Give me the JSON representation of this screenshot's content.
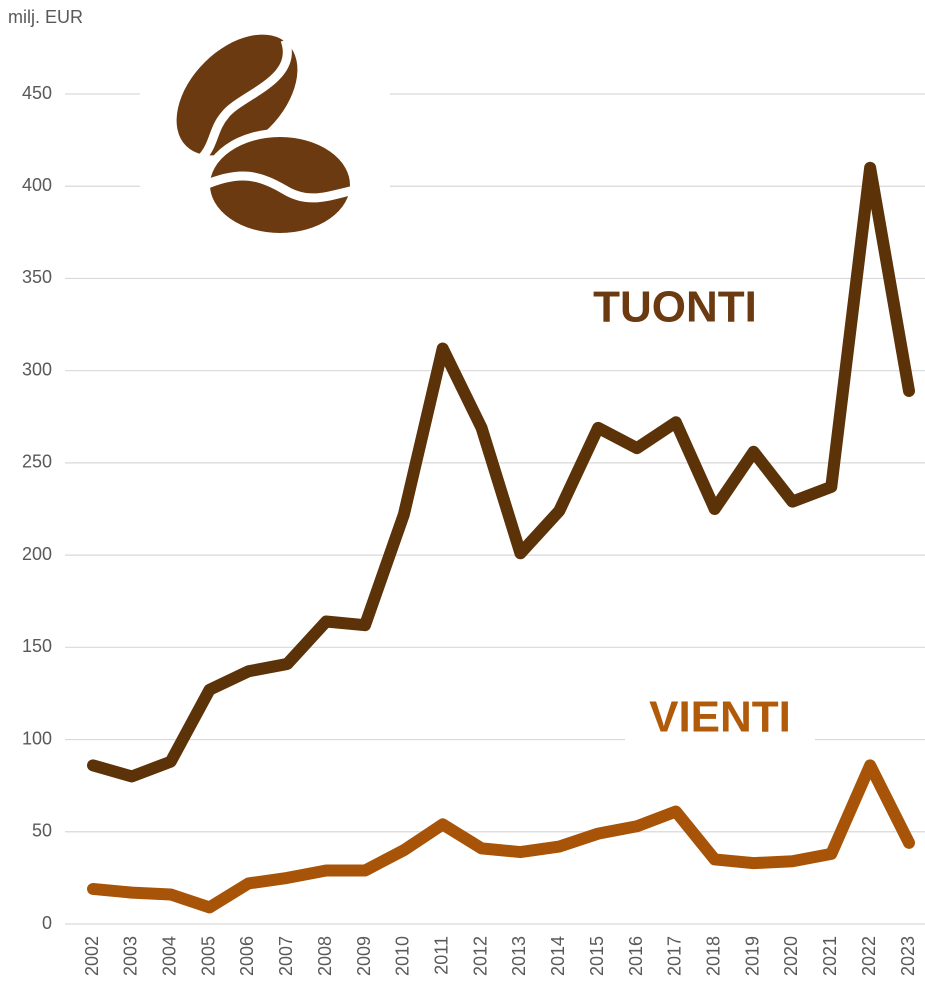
{
  "chart_data": {
    "type": "line",
    "y_label": "milj. EUR",
    "categories": [
      "2002",
      "2003",
      "2004",
      "2005",
      "2006",
      "2007",
      "2008",
      "2009",
      "2010",
      "2011",
      "2012",
      "2013",
      "2014",
      "2015",
      "2016",
      "2017",
      "2018",
      "2019",
      "2020",
      "2021",
      "2022",
      "2023"
    ],
    "series": [
      {
        "name": "TUONTI",
        "color": "#5c3208",
        "values": [
          86,
          80,
          88,
          127,
          137,
          141,
          164,
          162,
          222,
          312,
          269,
          201,
          224,
          269,
          258,
          272,
          225,
          256,
          229,
          237,
          410,
          289
        ]
      },
      {
        "name": "VIENTI",
        "color": "#a85408",
        "values": [
          19,
          17,
          16,
          9,
          22,
          25,
          29,
          29,
          40,
          54,
          41,
          39,
          42,
          49,
          53,
          61,
          35,
          33,
          34,
          38,
          86,
          44
        ]
      }
    ],
    "ylim": [
      0,
      450
    ],
    "yticks": [
      0,
      50,
      100,
      150,
      200,
      250,
      300,
      350,
      400,
      450
    ],
    "grid": true
  }
}
